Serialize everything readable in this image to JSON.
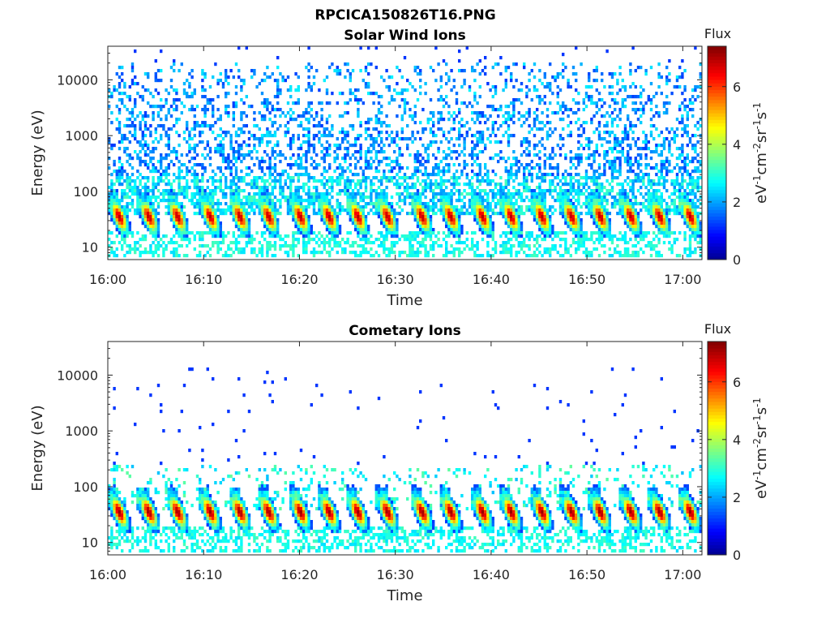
{
  "figure": {
    "title": "RPCICA150826T16.PNG"
  },
  "colormap": {
    "name": "jet",
    "stops": [
      "#00008f",
      "#0000ff",
      "#00ffff",
      "#ffff00",
      "#ff0000",
      "#800000"
    ]
  },
  "chart_data": [
    {
      "type": "heatmap",
      "title": "Solar Wind Ions",
      "xlabel": "Time",
      "ylabel": "Energy (eV)",
      "y_scale": "log",
      "ylim": [
        6,
        40000
      ],
      "xlim": [
        "16:00",
        "17:02"
      ],
      "x_ticks": [
        "16:00",
        "16:10",
        "16:20",
        "16:30",
        "16:40",
        "16:50",
        "17:00"
      ],
      "y_ticks": [
        "10",
        "100",
        "1000",
        "10000"
      ],
      "colorbar": {
        "title": "Flux",
        "label": "eV-1cm-2sr-1s-1",
        "range": [
          0,
          7.4
        ],
        "ticks": [
          "0",
          "2",
          "4",
          "6"
        ]
      },
      "background_flux": "high",
      "pulse_times_min": [
        0.6,
        3.7,
        6.7,
        10.1,
        13.2,
        16.2,
        19.5,
        22.5,
        25.5,
        28.6,
        32.2,
        35.2,
        38.5,
        41.5,
        44.7,
        47.8,
        50.8,
        54.0,
        57.0,
        60.2
      ],
      "pulse_peak_energy_eV": 35,
      "pulse_peak_flux": 7
    },
    {
      "type": "heatmap",
      "title": "Cometary Ions",
      "xlabel": "Time",
      "ylabel": "Energy (eV)",
      "y_scale": "log",
      "ylim": [
        6,
        40000
      ],
      "xlim": [
        "16:00",
        "17:02"
      ],
      "x_ticks": [
        "16:00",
        "16:10",
        "16:20",
        "16:30",
        "16:40",
        "16:50",
        "17:00"
      ],
      "y_ticks": [
        "10",
        "100",
        "1000",
        "10000"
      ],
      "colorbar": {
        "title": "Flux",
        "label": "eV-1cm-2sr-1s-1",
        "range": [
          0,
          7.4
        ],
        "ticks": [
          "0",
          "2",
          "4",
          "6"
        ]
      },
      "background_flux": "sparse",
      "pulse_times_min": [
        0.6,
        3.7,
        6.7,
        10.1,
        13.2,
        16.2,
        19.5,
        22.5,
        25.5,
        28.6,
        32.2,
        35.2,
        38.5,
        41.5,
        44.7,
        47.8,
        50.8,
        54.0,
        57.0,
        60.2
      ],
      "pulse_peak_energy_eV": 35,
      "pulse_peak_flux": 7.2
    }
  ]
}
